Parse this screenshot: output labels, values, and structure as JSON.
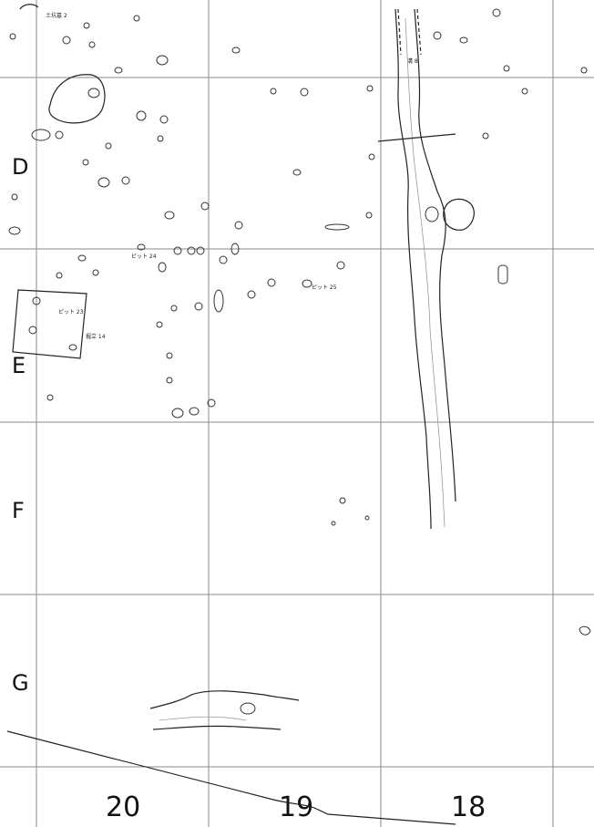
{
  "map": {
    "row_labels": [
      "D",
      "E",
      "F",
      "G"
    ],
    "column_labels": [
      "20",
      "19",
      "18"
    ],
    "feature_labels": {
      "grave": "土坑墓 2",
      "ditch": "溝 8",
      "pit24": "ピット 24",
      "pit25": "ピット 25",
      "pit23": "ピット 23",
      "building": "掘立 14"
    }
  }
}
